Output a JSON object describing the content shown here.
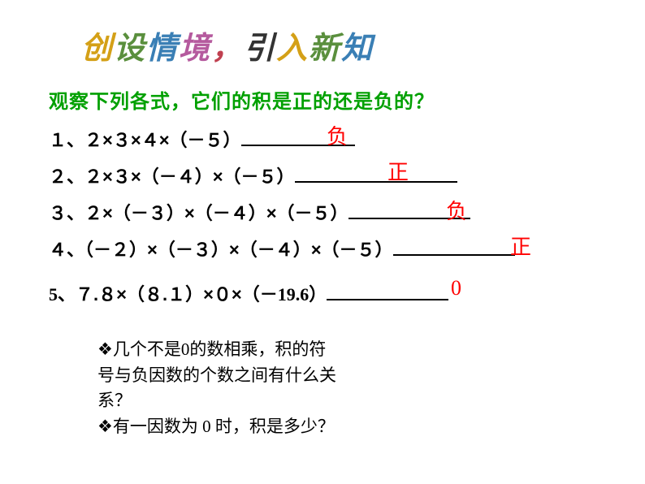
{
  "title": {
    "chars": [
      {
        "t": "创",
        "cls": "c1"
      },
      {
        "t": "设",
        "cls": "c2"
      },
      {
        "t": "情",
        "cls": "c3"
      },
      {
        "t": "境",
        "cls": "c4"
      },
      {
        "t": "，",
        "cls": "c5"
      },
      {
        "t": "引",
        "cls": "c6"
      },
      {
        "t": "入",
        "cls": "c7"
      },
      {
        "t": "新",
        "cls": "c8"
      },
      {
        "t": "知",
        "cls": "c9"
      }
    ]
  },
  "prompt": "观察下列各式，它们的积是正的还是负的？",
  "lines": {
    "l1": {
      "text": "１、２×３×４×（－５）",
      "blank_width": 140
    },
    "l2": {
      "text": "２、２×３×（－４）×（－５）",
      "blank_width": 200
    },
    "l3": {
      "text": "３、２×（－３）×（－４）×（－５）",
      "blank_width": 150
    },
    "l4": {
      "text": "４、（－２）×（－３）×（－４）×（－５）",
      "blank_width": 150
    },
    "l5": {
      "prefix": "5",
      "mid": "、７.８×（８.１）×０×（－",
      "val": "19.6",
      "suffix": "）",
      "blank_width": 150
    }
  },
  "answers": {
    "a1": "负",
    "a2": "正",
    "a3": "负",
    "a4": "正",
    "a5": "0"
  },
  "questions": {
    "q1a": "几个不是0的数相乘，积的符",
    "q1b": "号与负因数的个数之间有什么关",
    "q1c": "系？",
    "q2": "有一因数为 0 时，积是多少？",
    "bullet": "❖"
  },
  "colors": {
    "background": "#ffffff",
    "prompt": "#00a000",
    "text": "#000000",
    "answer": "#ff0000"
  }
}
